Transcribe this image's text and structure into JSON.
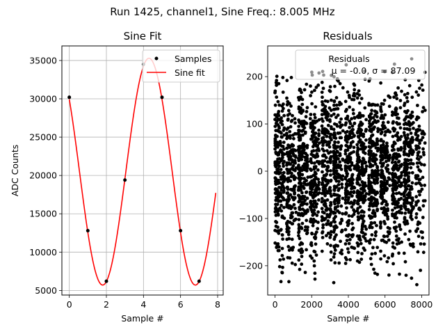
{
  "suptitle": "Run 1425, channel1, Sine Freq.: 8.005 MHz",
  "colors": {
    "sine": "#ff0000",
    "points": "#000000",
    "grid": "#b0b0b0"
  },
  "chart_data": [
    {
      "type": "scatter+line",
      "title": "Sine Fit",
      "xlabel": "Sample #",
      "ylabel": "ADC Counts",
      "xlim": [
        -0.4,
        8.3
      ],
      "ylim": [
        4400,
        36900
      ],
      "xticks": [
        0,
        2,
        4,
        6,
        8
      ],
      "xtick_labels": [
        "0",
        "2",
        "4",
        "6",
        "8"
      ],
      "yticks": [
        5000,
        10000,
        15000,
        20000,
        25000,
        30000,
        35000
      ],
      "ytick_labels": [
        "5000",
        "10000",
        "15000",
        "20000",
        "25000",
        "30000",
        "35000"
      ],
      "grid": true,
      "legend": {
        "position": "top-right",
        "entries": [
          "Samples",
          "Sine fit"
        ]
      },
      "samples": {
        "name": "Samples",
        "x": [
          0,
          1,
          2,
          3,
          4,
          5,
          6,
          7
        ],
        "y": [
          30200,
          12800,
          6200,
          19400,
          34500,
          30200,
          12800,
          6200
        ]
      },
      "fit": {
        "name": "Sine fit",
        "offset": 20500,
        "amplitude": 14800,
        "period": 5.0,
        "phase_x_of_max": 4.3,
        "x_range": [
          0,
          7.9
        ]
      }
    },
    {
      "type": "scatter",
      "title": "Residuals",
      "xlabel": "Sample #",
      "ylabel": "",
      "xlim": [
        -400,
        8400
      ],
      "ylim": [
        -262,
        265
      ],
      "xticks": [
        0,
        2000,
        4000,
        6000,
        8000
      ],
      "xtick_labels": [
        "0",
        "2000",
        "4000",
        "6000",
        "8000"
      ],
      "yticks": [
        -200,
        -100,
        0,
        100,
        200
      ],
      "ytick_labels": [
        "−200",
        "−100",
        "0",
        "100",
        "200"
      ],
      "grid": false,
      "legend": {
        "position": "top-right",
        "entries": [
          "Residuals",
          "μ = -0.0, σ = 87.09"
        ]
      },
      "residuals": {
        "name": "Residuals",
        "n_points": 8000,
        "mean": -0.0,
        "sigma": 87.09,
        "min": -240,
        "max": 240,
        "cluster_period_samples": 640
      }
    }
  ]
}
